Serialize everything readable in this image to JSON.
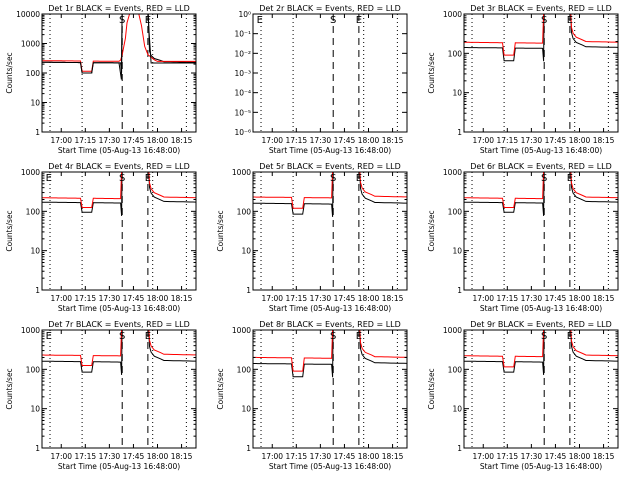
{
  "page": {
    "background": "#ffffff"
  },
  "chart_data": [
    {
      "type": "line",
      "title": "Det 1r BLACK = Events, RED = LLD",
      "xlabel": "Start Time (05-Aug-13 16:48:00)",
      "ylabel": "Counts/sec",
      "xtick_labels": [
        "17:00",
        "17:15",
        "17:30",
        "17:45",
        "18:00",
        "18:15"
      ],
      "ytick_labels": [
        "1",
        "10",
        "100",
        "1000",
        "10000"
      ],
      "xlim_minutes": [
        0,
        96
      ],
      "ylim": [
        1,
        10000
      ],
      "yscale": "log",
      "markers": [
        "S",
        "E"
      ],
      "profile": "flare",
      "series": [
        {
          "name": "Events",
          "color": "#000000",
          "base": 230,
          "dip": 100
        },
        {
          "name": "LLD",
          "color": "#ff0000",
          "base": 260,
          "dip": 115,
          "peak": 10000
        }
      ]
    },
    {
      "type": "line",
      "title": "Det 2r BLACK = Events, RED = LLD",
      "xlabel": "Start Time (05-Aug-13 16:48:00)",
      "ylabel": "",
      "xtick_labels": [
        "17:00",
        "17:15",
        "17:30",
        "17:45",
        "18:00",
        "18:15"
      ],
      "ytick_labels": [
        "10⁰",
        "10⁻¹",
        "10⁻²",
        "10⁻³",
        "10⁻⁴",
        "10⁻⁵",
        "10⁻⁶"
      ],
      "xlim_minutes": [
        0,
        96
      ],
      "ylim": [
        1e-06,
        1
      ],
      "yscale": "log",
      "markers": [
        "E",
        "S",
        "E"
      ],
      "profile": "empty",
      "series": []
    },
    {
      "type": "line",
      "title": "Det 3r BLACK = Events, RED = LLD",
      "xlabel": "Start Time (05-Aug-13 16:48:00)",
      "ylabel": "Counts/sec",
      "xtick_labels": [
        "17:00",
        "17:15",
        "17:30",
        "17:45",
        "18:00",
        "18:15"
      ],
      "ytick_labels": [
        "1",
        "10",
        "100",
        "1000"
      ],
      "xlim_minutes": [
        0,
        96
      ],
      "ylim": [
        1,
        1000
      ],
      "yscale": "log",
      "markers": [
        "S",
        "E"
      ],
      "profile": "gap",
      "series": [
        {
          "name": "Events",
          "color": "#000000",
          "base": 140,
          "dip": 65
        },
        {
          "name": "LLD",
          "color": "#ff0000",
          "base": 190,
          "dip": 90
        }
      ]
    },
    {
      "type": "line",
      "title": "Det 4r BLACK = Events, RED = LLD",
      "xlabel": "Start Time (05-Aug-13 16:48:00)",
      "ylabel": "Counts/sec",
      "xtick_labels": [
        "17:00",
        "17:15",
        "17:30",
        "17:45",
        "18:00",
        "18:15"
      ],
      "ytick_labels": [
        "1",
        "10",
        "100",
        "1000"
      ],
      "xlim_minutes": [
        0,
        96
      ],
      "ylim": [
        1,
        1000
      ],
      "yscale": "log",
      "markers": [
        "E",
        "S",
        "E"
      ],
      "profile": "gap",
      "series": [
        {
          "name": "Events",
          "color": "#000000",
          "base": 170,
          "dip": 95
        },
        {
          "name": "LLD",
          "color": "#ff0000",
          "base": 220,
          "dip": 125
        }
      ]
    },
    {
      "type": "line",
      "title": "Det 5r BLACK = Events, RED = LLD",
      "xlabel": "Start Time (05-Aug-13 16:48:00)",
      "ylabel": "Counts/sec",
      "xtick_labels": [
        "17:00",
        "17:15",
        "17:30",
        "17:45",
        "18:00",
        "18:15"
      ],
      "ytick_labels": [
        "1",
        "10",
        "100",
        "1000"
      ],
      "xlim_minutes": [
        0,
        96
      ],
      "ylim": [
        1,
        1000
      ],
      "yscale": "log",
      "markers": [
        "S",
        "E"
      ],
      "profile": "gap",
      "series": [
        {
          "name": "Events",
          "color": "#000000",
          "base": 160,
          "dip": 85
        },
        {
          "name": "LLD",
          "color": "#ff0000",
          "base": 230,
          "dip": 120
        }
      ]
    },
    {
      "type": "line",
      "title": "Det 6r BLACK = Events, RED = LLD",
      "xlabel": "Start Time (05-Aug-13 16:48:00)",
      "ylabel": "Counts/sec",
      "xtick_labels": [
        "17:00",
        "17:15",
        "17:30",
        "17:45",
        "18:00",
        "18:15"
      ],
      "ytick_labels": [
        "1",
        "10",
        "100",
        "1000"
      ],
      "xlim_minutes": [
        0,
        96
      ],
      "ylim": [
        1,
        1000
      ],
      "yscale": "log",
      "markers": [
        "S",
        "E"
      ],
      "profile": "gap",
      "series": [
        {
          "name": "Events",
          "color": "#000000",
          "base": 170,
          "dip": 95
        },
        {
          "name": "LLD",
          "color": "#ff0000",
          "base": 220,
          "dip": 125
        }
      ]
    },
    {
      "type": "line",
      "title": "Det 7r BLACK = Events, RED = LLD",
      "xlabel": "Start Time (05-Aug-13 16:48:00)",
      "ylabel": "Counts/sec",
      "xtick_labels": [
        "17:00",
        "17:15",
        "17:30",
        "17:45",
        "18:00",
        "18:15"
      ],
      "ytick_labels": [
        "1",
        "10",
        "100",
        "1000"
      ],
      "xlim_minutes": [
        0,
        96
      ],
      "ylim": [
        1,
        1000
      ],
      "yscale": "log",
      "markers": [
        "E",
        "S",
        "E"
      ],
      "profile": "gap",
      "series": [
        {
          "name": "Events",
          "color": "#000000",
          "base": 160,
          "dip": 85
        },
        {
          "name": "LLD",
          "color": "#ff0000",
          "base": 230,
          "dip": 125
        }
      ]
    },
    {
      "type": "line",
      "title": "Det 8r BLACK = Events, RED = LLD",
      "xlabel": "Start Time (05-Aug-13 16:48:00)",
      "ylabel": "Counts/sec",
      "xtick_labels": [
        "17:00",
        "17:15",
        "17:30",
        "17:45",
        "18:00",
        "18:15"
      ],
      "ytick_labels": [
        "1",
        "10",
        "100",
        "1000"
      ],
      "xlim_minutes": [
        0,
        96
      ],
      "ylim": [
        1,
        1000
      ],
      "yscale": "log",
      "markers": [
        "S",
        "E"
      ],
      "profile": "gap",
      "series": [
        {
          "name": "Events",
          "color": "#000000",
          "base": 140,
          "dip": 65
        },
        {
          "name": "LLD",
          "color": "#ff0000",
          "base": 200,
          "dip": 90
        }
      ]
    },
    {
      "type": "line",
      "title": "Det 9r BLACK = Events, RED = LLD",
      "xlabel": "Start Time (05-Aug-13 16:48:00)",
      "ylabel": "Counts/sec",
      "xtick_labels": [
        "17:00",
        "17:15",
        "17:30",
        "17:45",
        "18:00",
        "18:15"
      ],
      "ytick_labels": [
        "1",
        "10",
        "100",
        "1000"
      ],
      "xlim_minutes": [
        0,
        96
      ],
      "ylim": [
        1,
        1000
      ],
      "yscale": "log",
      "markers": [
        "S",
        "E"
      ],
      "profile": "gap",
      "series": [
        {
          "name": "Events",
          "color": "#000000",
          "base": 160,
          "dip": 85
        },
        {
          "name": "LLD",
          "color": "#ff0000",
          "base": 220,
          "dip": 115
        }
      ]
    }
  ]
}
